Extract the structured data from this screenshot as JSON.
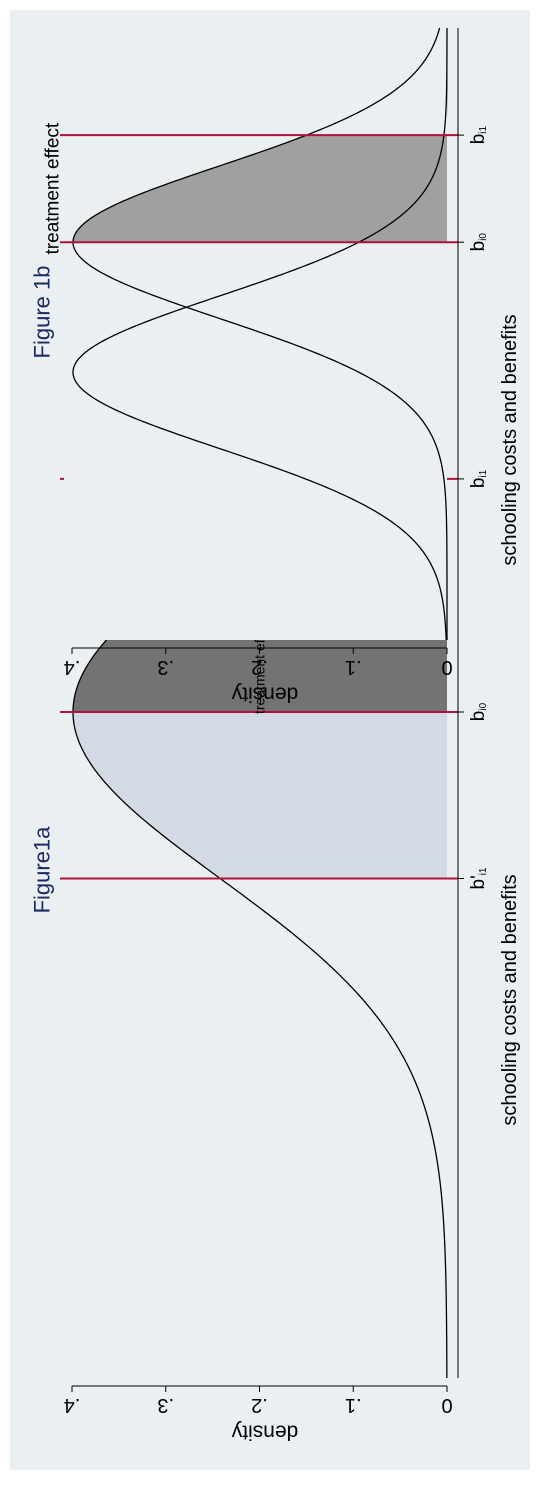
{
  "colors": {
    "figure_background": "#eaf0f2",
    "plot_background": "#eaf0f2",
    "title": "#1a2960",
    "curve": "#000000",
    "vline": "#b0103a",
    "shade_light": "#d3dae4",
    "shade_dark": "#737373",
    "shade_medium": "#a0a0a0",
    "axis": "#000000"
  },
  "chart_data": [
    {
      "type": "area",
      "title": "Figure1a",
      "xlabel": "schooling costs and benefits",
      "ylabel": "density",
      "ylim": [
        0,
        0.4
      ],
      "xlim": [
        -4,
        4
      ],
      "yticks": [
        0,
        0.1,
        0.2,
        0.3,
        0.4
      ],
      "ytick_labels": [
        "0",
        ".1",
        ".2",
        ".3",
        ".4"
      ],
      "grid": false,
      "series": [
        {
          "distribution": "normal",
          "mean": 0,
          "sd": 1
        }
      ],
      "vlines": [
        {
          "x": -1,
          "label": "b'",
          "sub": "i1"
        },
        {
          "x": 0,
          "label": "b",
          "sub": "i0"
        },
        {
          "x": 1.4,
          "label": "b",
          "sub": "i1"
        }
      ],
      "shaded_regions": [
        {
          "from": -1,
          "to": 0,
          "series": 0,
          "color": "#d3dae4"
        },
        {
          "from": 0,
          "to": 1.4,
          "series": 0,
          "color": "#737373"
        }
      ],
      "annotations": [
        {
          "text": "treatment effects",
          "x": 0.3,
          "y": 0.2
        }
      ]
    },
    {
      "type": "area",
      "title": "Figure 1b",
      "xlabel": "schooling costs and benefits",
      "ylabel": "density",
      "ylim": [
        0,
        0.4
      ],
      "xlim": [
        -4.5,
        3.5
      ],
      "yticks": [
        0,
        0.1,
        0.2,
        0.3,
        0.4
      ],
      "ytick_labels": [
        "0",
        ".1",
        ".2",
        ".3",
        ".4"
      ],
      "grid": false,
      "series": [
        {
          "distribution": "normal",
          "mean": -1,
          "sd": 1
        },
        {
          "distribution": "normal",
          "mean": 0.7,
          "sd": 1
        }
      ],
      "vlines": [
        {
          "x": 0.7,
          "label": "b",
          "sub": "i0"
        },
        {
          "x": 2.1,
          "label": "b",
          "sub": "i1"
        }
      ],
      "shaded_regions": [
        {
          "from": 0.7,
          "to": 2.1,
          "series": 1,
          "color": "#a0a0a0"
        }
      ],
      "annotations": [
        {
          "text": "treatment effect",
          "x": 1.4,
          "y": 0.42
        }
      ]
    }
  ]
}
